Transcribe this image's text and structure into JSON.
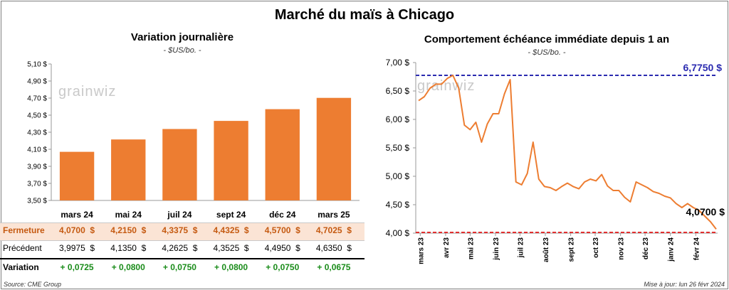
{
  "title": "Marché du maïs à Chicago",
  "left": {
    "title": "Variation journalière",
    "unit": "- $US/bo. -",
    "watermark": "grainwiz",
    "table": {
      "row_labels": [
        "Fermeture",
        "Précédent",
        "Variation"
      ],
      "fermeture": [
        "4,0700  $",
        "4,2150  $",
        "4,3375  $",
        "4,4325  $",
        "4,5700  $",
        "4,7025  $"
      ],
      "precedent": [
        "3,9975  $",
        "4,1350  $",
        "4,2625  $",
        "4,3525  $",
        "4,4950  $",
        "4,6350  $"
      ],
      "variation": [
        "+ 0,0725",
        "+ 0,0800",
        "+ 0,0750",
        "+ 0,0800",
        "+ 0,0750",
        "+ 0,0675"
      ]
    }
  },
  "right": {
    "title": "Comportement  échéance immédiate depuis 1 an",
    "unit": "- $US/bo. -",
    "watermark": "grainwiz",
    "high_label": "6,7750 $",
    "last_label": "4,0700 $"
  },
  "footer": {
    "source": "Source: CME Group",
    "updated": "Mise à jour: lun 26 févr 2024"
  },
  "colors": {
    "bar": "#ed7d31",
    "line": "#ed7d31",
    "high": "#2b2bb0",
    "low": "#e03030",
    "fermeture_bg": "#fbe4d5",
    "positive": "#1a8c1a"
  },
  "chart_data": [
    {
      "type": "bar",
      "title": "Variation journalière",
      "ylabel": "$US/bo.",
      "categories": [
        "mars 24",
        "mai 24",
        "juil 24",
        "sept 24",
        "déc 24",
        "mars 25"
      ],
      "values": [
        4.07,
        4.215,
        4.3375,
        4.4325,
        4.57,
        4.7025
      ],
      "ylim": [
        3.5,
        5.1
      ],
      "yticks": [
        "3,50 $",
        "3,70 $",
        "3,90 $",
        "4,10 $",
        "4,30 $",
        "4,50 $",
        "4,70 $",
        "4,90 $",
        "5,10 $"
      ],
      "grid": false
    },
    {
      "type": "line",
      "title": "Comportement  échéance immédiate depuis 1 an",
      "ylabel": "$US/bo.",
      "ylim": [
        4.0,
        7.0
      ],
      "yticks": [
        "4,00 $",
        "4,50 $",
        "5,00 $",
        "5,50 $",
        "6,00 $",
        "6,50 $",
        "7,00 $"
      ],
      "xticks": [
        "mars 23",
        "avr 23",
        "mai 23",
        "juin 23",
        "juil 23",
        "août 23",
        "sept 23",
        "oct 23",
        "nov 23",
        "déc 23",
        "janv 24",
        "févr 24"
      ],
      "x": [
        "2023-02-27",
        "2023-03-06",
        "2023-03-13",
        "2023-03-20",
        "2023-03-27",
        "2023-04-03",
        "2023-04-10",
        "2023-04-17",
        "2023-04-24",
        "2023-05-01",
        "2023-05-08",
        "2023-05-15",
        "2023-05-22",
        "2023-05-29",
        "2023-06-05",
        "2023-06-12",
        "2023-06-19",
        "2023-06-26",
        "2023-07-03",
        "2023-07-10",
        "2023-07-17",
        "2023-07-24",
        "2023-07-31",
        "2023-08-07",
        "2023-08-14",
        "2023-08-21",
        "2023-08-28",
        "2023-09-04",
        "2023-09-11",
        "2023-09-18",
        "2023-09-25",
        "2023-10-02",
        "2023-10-09",
        "2023-10-16",
        "2023-10-23",
        "2023-10-30",
        "2023-11-06",
        "2023-11-13",
        "2023-11-20",
        "2023-11-27",
        "2023-12-04",
        "2023-12-11",
        "2023-12-18",
        "2023-12-25",
        "2024-01-01",
        "2024-01-08",
        "2024-01-15",
        "2024-01-22",
        "2024-01-29",
        "2024-02-05",
        "2024-02-12",
        "2024-02-19",
        "2024-02-26"
      ],
      "series": [
        {
          "values": [
            6.33,
            6.4,
            6.55,
            6.62,
            6.62,
            6.72,
            6.775,
            6.55,
            5.9,
            5.82,
            5.95,
            5.6,
            5.92,
            6.1,
            6.1,
            6.45,
            6.7,
            4.9,
            4.85,
            5.05,
            5.6,
            4.95,
            4.82,
            4.8,
            4.75,
            4.82,
            4.88,
            4.82,
            4.78,
            4.9,
            4.95,
            4.92,
            5.03,
            4.83,
            4.75,
            4.75,
            4.63,
            4.55,
            4.9,
            4.85,
            4.8,
            4.73,
            4.7,
            4.65,
            4.62,
            4.52,
            4.45,
            4.52,
            4.45,
            4.4,
            4.3,
            4.2,
            4.07
          ]
        }
      ],
      "reference_lines": [
        {
          "value": 6.775,
          "label": "6,7750 $"
        },
        {
          "value": 4.07,
          "label": "4,0700 $"
        }
      ],
      "grid": false
    }
  ]
}
